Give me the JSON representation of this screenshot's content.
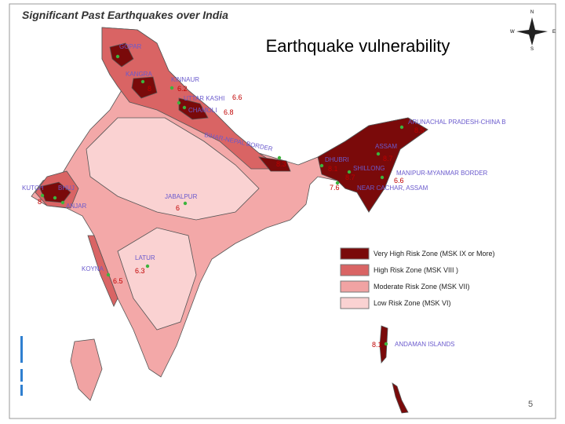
{
  "title": "Significant Past Earthquakes over India",
  "overlay_title": "Earthquake vulnerability",
  "compass": {
    "n": "N",
    "e": "E",
    "s": "S",
    "w": "W"
  },
  "places": [
    {
      "name": "GOPAR"
    },
    {
      "name": "KANGRA",
      "magnitude": "8"
    },
    {
      "name": "KINNAUR",
      "magnitude": "6.2"
    },
    {
      "name": "UTTAR KASHI",
      "magnitude": "6.6"
    },
    {
      "name": "CHAMOLI",
      "magnitude": "6.8"
    },
    {
      "name": "BIHAR-NEPAL BORDER",
      "magnitude": "8.3"
    },
    {
      "name": "ARUNACHAL PRADESH-CHINA B",
      "magnitude": "8.5"
    },
    {
      "name": "ASSAM",
      "magnitude": "8.7"
    },
    {
      "name": "DHUBRI",
      "magnitude": "8.1"
    },
    {
      "name": "SHILLONG",
      "magnitude": "8.7"
    },
    {
      "name": "MANIPUR-MYANMAR BORDER",
      "magnitude": "6.6"
    },
    {
      "name": "NEAR CACHAR, ASSAM",
      "magnitude": "7.6"
    },
    {
      "name": "KUTCH",
      "magnitude": "8"
    },
    {
      "name": "BHUJ"
    },
    {
      "name": "ANJAR"
    },
    {
      "name": "JABALPUR",
      "magnitude": "6"
    },
    {
      "name": "LATUR",
      "magnitude": "6.3"
    },
    {
      "name": "KOYNA",
      "magnitude": "6.5"
    },
    {
      "name": "ANDAMAN ISLANDS",
      "magnitude": "8.1"
    }
  ],
  "legend": [
    {
      "label": "Very High Risk Zone (MSK IX or More)",
      "color": "#7a0a0a"
    },
    {
      "label": "High Risk Zone  (MSK  VIII )",
      "color": "#d96464"
    },
    {
      "label": "Moderate Risk Zone  (MSK  VII)",
      "color": "#f1a3a3"
    },
    {
      "label": "Low Risk Zone  (MSK  VI)",
      "color": "#fad2d2"
    }
  ],
  "page_number": "5"
}
